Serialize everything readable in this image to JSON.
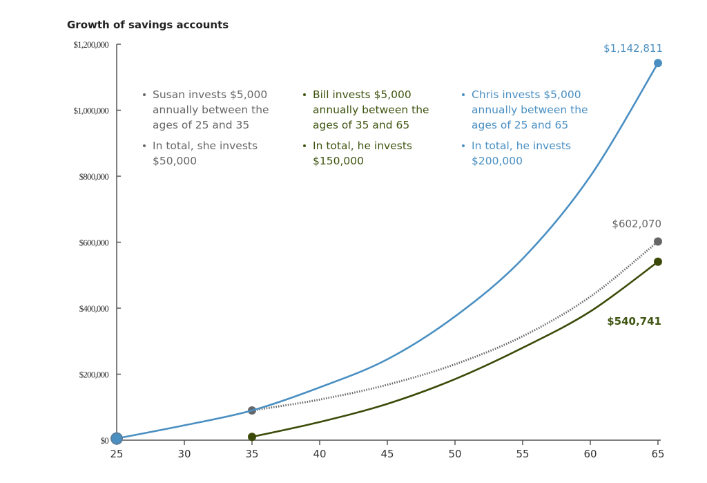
{
  "chart_data": {
    "type": "line",
    "title": "Growth of savings accounts",
    "xlabel": "",
    "ylabel": "",
    "xlim": [
      25,
      65
    ],
    "ylim": [
      0,
      1200000
    ],
    "x_ticks": [
      "25",
      "30",
      "35",
      "40",
      "45",
      "50",
      "55",
      "60",
      "65"
    ],
    "y_ticks": [
      "$0",
      "$200,000",
      "$400,000",
      "$600,000",
      "$800,000",
      "$1,000,000",
      "$1,200,000"
    ],
    "grid": false,
    "series": [
      {
        "key": "chris",
        "color": "#4a8fc2",
        "style": "solid",
        "x": [
          25,
          30,
          35,
          40,
          45,
          50,
          55,
          60,
          65
        ],
        "y": [
          5000,
          45000,
          90000,
          160000,
          245000,
          375000,
          550000,
          800000,
          1142811
        ],
        "end_label": "$1,142,811"
      },
      {
        "key": "susan",
        "color": "#666666",
        "style": "dotted",
        "x": [
          35,
          40,
          45,
          50,
          55,
          60,
          65
        ],
        "y": [
          90000,
          123000,
          168000,
          230000,
          315000,
          435000,
          602070
        ],
        "end_label": "$602,070"
      },
      {
        "key": "bill",
        "color": "#3b4a08",
        "style": "solid",
        "x": [
          35,
          40,
          45,
          50,
          55,
          60,
          65
        ],
        "y": [
          10000,
          55000,
          110000,
          185000,
          280000,
          390000,
          540741
        ],
        "end_label": "$540,741"
      }
    ],
    "annotations": [
      {
        "key": "susan",
        "color": "#666666",
        "bold": false,
        "lines": [
          {
            "bullet": true,
            "text": "Susan invests $5,000"
          },
          {
            "bullet": false,
            "text": "annually between the"
          },
          {
            "bullet": false,
            "text": "ages of 25 and 35"
          },
          {
            "bullet": true,
            "text": "In total, she invests"
          },
          {
            "bullet": false,
            "text": "$50,000"
          }
        ]
      },
      {
        "key": "bill",
        "color": "#3f5410",
        "bold": false,
        "lines": [
          {
            "bullet": true,
            "text": "Bill invests $5,000"
          },
          {
            "bullet": false,
            "text": "annually between the"
          },
          {
            "bullet": false,
            "text": "ages of 35 and 65"
          },
          {
            "bullet": true,
            "text": "In total, he invests"
          },
          {
            "bullet": false,
            "text": "$150,000"
          }
        ]
      },
      {
        "key": "chris",
        "color": "#4a8fc2",
        "bold": false,
        "lines": [
          {
            "bullet": true,
            "text": "Chris invests $5,000"
          },
          {
            "bullet": false,
            "text": "annually between the"
          },
          {
            "bullet": false,
            "text": "ages of 25 and 65"
          },
          {
            "bullet": true,
            "text": "In total, he invests"
          },
          {
            "bullet": false,
            "text": "$200,000"
          }
        ]
      }
    ]
  }
}
